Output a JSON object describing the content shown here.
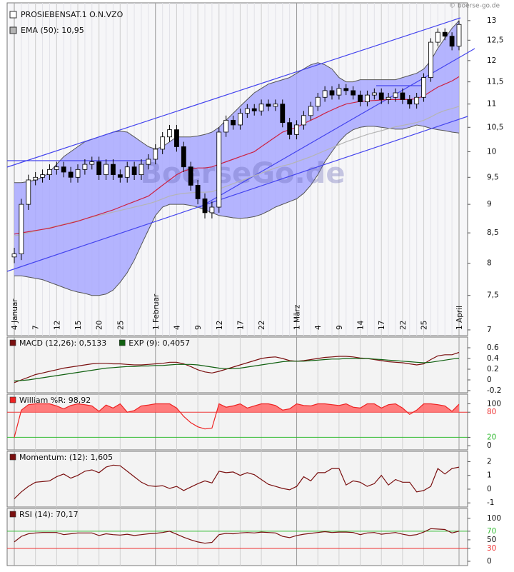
{
  "copyright": "© boerse-go.de",
  "chart_data": [
    {
      "type": "candlestick",
      "log": true,
      "watermark": "BoerseGo.de",
      "ylim": [
        6.92,
        13.47
      ],
      "yticks": [
        13,
        {
          "value": 12.5,
          "label": "12,5"
        },
        12,
        {
          "value": 11.5,
          "label": "11,5"
        },
        11,
        {
          "value": 10.5,
          "label": "10,5"
        },
        10,
        {
          "value": 9.5,
          "label": "9,5"
        },
        9,
        {
          "value": 8.5,
          "label": "8,5"
        },
        8,
        {
          "value": 7.5,
          "label": "7,5"
        },
        7
      ],
      "categories": [
        "4 Januar",
        null,
        null,
        "7",
        null,
        null,
        "12",
        null,
        null,
        "15",
        null,
        null,
        "20",
        null,
        null,
        "25",
        null,
        null,
        null,
        null,
        "1 Februar",
        null,
        null,
        "4",
        null,
        null,
        "9",
        null,
        null,
        "12",
        null,
        null,
        "17",
        null,
        null,
        "22",
        null,
        null,
        null,
        null,
        "1 März",
        null,
        null,
        "4",
        null,
        null,
        "9",
        null,
        null,
        "14",
        null,
        null,
        "17",
        null,
        null,
        "22",
        null,
        null,
        "25",
        null,
        null,
        null,
        null,
        "1 April"
      ],
      "candles": {
        "name": "PROSIEBENSAT.1 O.N.VZO",
        "color_up": "#ffffff",
        "color_down": "#000000",
        "color": "#000000",
        "open": [
          8.1,
          8.15,
          9.0,
          9.45,
          9.5,
          9.55,
          9.65,
          9.7,
          9.6,
          9.5,
          9.65,
          9.75,
          9.8,
          9.55,
          9.75,
          9.55,
          9.5,
          9.7,
          9.55,
          9.75,
          9.85,
          10.05,
          10.3,
          10.45,
          10.1,
          9.7,
          9.35,
          9.1,
          8.85,
          8.95,
          10.4,
          10.65,
          10.55,
          10.8,
          10.9,
          10.85,
          11.0,
          10.95,
          11.0,
          10.6,
          10.35,
          10.55,
          10.75,
          10.95,
          11.15,
          11.3,
          11.2,
          11.35,
          11.3,
          11.2,
          11.05,
          11.2,
          11.25,
          11.1,
          11.15,
          11.25,
          11.1,
          11.0,
          11.15,
          11.6,
          12.45,
          12.7,
          12.6,
          12.35
        ],
        "high": [
          8.25,
          9.1,
          9.55,
          9.6,
          9.65,
          9.75,
          9.8,
          9.8,
          9.7,
          9.75,
          9.85,
          9.9,
          9.9,
          9.85,
          9.85,
          9.65,
          9.8,
          9.8,
          9.85,
          9.95,
          10.15,
          10.4,
          10.55,
          10.55,
          10.2,
          9.8,
          9.45,
          9.2,
          9.05,
          10.5,
          10.75,
          10.75,
          10.9,
          11.0,
          11.0,
          11.1,
          11.1,
          11.1,
          11.1,
          10.7,
          10.65,
          10.85,
          11.05,
          11.25,
          11.4,
          11.4,
          11.45,
          11.45,
          11.4,
          11.3,
          11.3,
          11.35,
          11.35,
          11.25,
          11.35,
          11.35,
          11.2,
          11.25,
          11.7,
          12.55,
          12.8,
          12.8,
          12.7,
          13.0
        ],
        "low": [
          8.0,
          8.05,
          8.9,
          9.35,
          9.4,
          9.45,
          9.55,
          9.5,
          9.4,
          9.4,
          9.55,
          9.65,
          9.45,
          9.45,
          9.45,
          9.4,
          9.4,
          9.45,
          9.45,
          9.65,
          9.75,
          9.95,
          10.2,
          10.0,
          9.6,
          9.25,
          9.0,
          8.75,
          8.75,
          8.85,
          10.3,
          10.45,
          10.45,
          10.7,
          10.75,
          10.75,
          10.85,
          10.85,
          10.5,
          10.25,
          10.25,
          10.45,
          10.65,
          10.85,
          11.05,
          11.1,
          11.1,
          11.2,
          11.1,
          10.95,
          10.95,
          11.1,
          11.0,
          11.0,
          11.05,
          11.0,
          10.9,
          10.9,
          11.05,
          11.5,
          12.35,
          12.5,
          12.25,
          12.25
        ],
        "close": [
          8.15,
          9.0,
          9.45,
          9.5,
          9.55,
          9.65,
          9.7,
          9.6,
          9.5,
          9.65,
          9.75,
          9.8,
          9.55,
          9.75,
          9.55,
          9.5,
          9.7,
          9.55,
          9.75,
          9.85,
          10.05,
          10.3,
          10.45,
          10.1,
          9.7,
          9.35,
          9.1,
          8.85,
          8.95,
          10.4,
          10.65,
          10.55,
          10.8,
          10.9,
          10.85,
          11.0,
          10.95,
          11.0,
          10.6,
          10.35,
          10.55,
          10.75,
          10.95,
          11.15,
          11.3,
          11.2,
          11.35,
          11.3,
          11.2,
          11.05,
          11.2,
          11.25,
          11.1,
          11.15,
          11.25,
          11.1,
          11.0,
          11.15,
          11.6,
          12.45,
          12.7,
          12.6,
          12.35,
          12.9
        ]
      },
      "band": {
        "color": "#555555",
        "fill": "#a8a8ff",
        "upper": [
          9.4,
          9.4,
          9.42,
          9.45,
          9.5,
          9.6,
          9.75,
          9.9,
          10.0,
          10.1,
          10.2,
          10.25,
          10.3,
          10.35,
          10.4,
          10.42,
          10.4,
          10.3,
          10.2,
          10.1,
          10.05,
          10.1,
          10.2,
          10.3,
          10.3,
          10.3,
          10.32,
          10.35,
          10.4,
          10.5,
          10.65,
          10.8,
          10.95,
          11.1,
          11.25,
          11.35,
          11.45,
          11.5,
          11.55,
          11.6,
          11.7,
          11.8,
          11.9,
          11.95,
          11.9,
          11.8,
          11.6,
          11.5,
          11.5,
          11.55,
          11.55,
          11.55,
          11.55,
          11.55,
          11.55,
          11.6,
          11.65,
          11.7,
          11.8,
          12.0,
          12.3,
          12.55,
          12.8,
          13.0
        ],
        "lower": [
          7.8,
          7.8,
          7.78,
          7.76,
          7.74,
          7.7,
          7.66,
          7.62,
          7.58,
          7.55,
          7.53,
          7.5,
          7.5,
          7.52,
          7.58,
          7.7,
          7.85,
          8.05,
          8.3,
          8.55,
          8.8,
          8.95,
          9.0,
          9.0,
          9.0,
          8.98,
          8.95,
          8.9,
          8.85,
          8.8,
          8.78,
          8.76,
          8.75,
          8.76,
          8.78,
          8.82,
          8.88,
          8.95,
          9.0,
          9.05,
          9.1,
          9.2,
          9.35,
          9.55,
          9.8,
          10.0,
          10.2,
          10.35,
          10.45,
          10.5,
          10.52,
          10.52,
          10.5,
          10.48,
          10.46,
          10.46,
          10.5,
          10.55,
          10.52,
          10.48,
          10.45,
          10.43,
          10.4,
          10.38
        ]
      },
      "series": [
        {
          "name": "EMA (50): 10,95",
          "color": "#b4b4b4",
          "values": [
            8.45,
            8.47,
            8.5,
            8.53,
            8.56,
            8.59,
            8.62,
            8.65,
            8.68,
            8.71,
            8.74,
            8.77,
            8.8,
            8.83,
            8.86,
            8.89,
            8.92,
            8.95,
            8.98,
            9.01,
            9.05,
            9.1,
            9.15,
            9.18,
            9.2,
            9.21,
            9.22,
            9.22,
            9.23,
            9.28,
            9.33,
            9.38,
            9.43,
            9.48,
            9.53,
            9.58,
            9.63,
            9.68,
            9.72,
            9.75,
            9.8,
            9.85,
            9.9,
            9.96,
            10.02,
            10.08,
            10.14,
            10.2,
            10.25,
            10.3,
            10.35,
            10.39,
            10.43,
            10.47,
            10.51,
            10.54,
            10.57,
            10.6,
            10.65,
            10.72,
            10.8,
            10.86,
            10.9,
            10.95
          ]
        },
        {
          "color": "#cc2244",
          "values": [
            8.48,
            8.5,
            8.52,
            8.54,
            8.56,
            8.58,
            8.61,
            8.64,
            8.67,
            8.7,
            8.74,
            8.78,
            8.82,
            8.86,
            8.9,
            8.95,
            9.0,
            9.05,
            9.1,
            9.15,
            9.25,
            9.35,
            9.45,
            9.55,
            9.62,
            9.66,
            9.68,
            9.68,
            9.7,
            9.75,
            9.8,
            9.85,
            9.9,
            9.95,
            10.0,
            10.1,
            10.2,
            10.3,
            10.4,
            10.45,
            10.5,
            10.58,
            10.65,
            10.72,
            10.8,
            10.87,
            10.94,
            11.0,
            11.03,
            11.06,
            11.07,
            11.08,
            11.09,
            11.1,
            11.1,
            11.1,
            11.1,
            11.12,
            11.18,
            11.28,
            11.38,
            11.45,
            11.52,
            11.62
          ]
        }
      ]
    },
    {
      "type": "line",
      "ylim": [
        -0.24,
        0.8
      ],
      "yticks": [
        0.6,
        0.4,
        0.2,
        0,
        -0.2
      ],
      "series": [
        {
          "name": "MACD (12,26): 0,5133",
          "color": "#7a1010",
          "values": [
            -0.05,
            0.0,
            0.05,
            0.1,
            0.13,
            0.16,
            0.19,
            0.22,
            0.24,
            0.26,
            0.28,
            0.3,
            0.31,
            0.31,
            0.3,
            0.3,
            0.29,
            0.28,
            0.28,
            0.29,
            0.3,
            0.31,
            0.33,
            0.33,
            0.3,
            0.25,
            0.19,
            0.15,
            0.13,
            0.16,
            0.2,
            0.24,
            0.28,
            0.32,
            0.36,
            0.4,
            0.42,
            0.43,
            0.4,
            0.36,
            0.35,
            0.36,
            0.38,
            0.4,
            0.42,
            0.43,
            0.44,
            0.44,
            0.43,
            0.41,
            0.4,
            0.38,
            0.36,
            0.34,
            0.33,
            0.32,
            0.3,
            0.28,
            0.3,
            0.38,
            0.45,
            0.47,
            0.47,
            0.5133
          ]
        },
        {
          "name": "EXP (9): 0,4057",
          "color": "#106010",
          "values": [
            -0.02,
            -0.01,
            0.0,
            0.02,
            0.04,
            0.06,
            0.08,
            0.1,
            0.12,
            0.14,
            0.16,
            0.18,
            0.2,
            0.22,
            0.23,
            0.24,
            0.25,
            0.25,
            0.26,
            0.26,
            0.27,
            0.27,
            0.28,
            0.29,
            0.29,
            0.29,
            0.28,
            0.26,
            0.24,
            0.22,
            0.21,
            0.21,
            0.22,
            0.24,
            0.26,
            0.28,
            0.3,
            0.32,
            0.34,
            0.35,
            0.35,
            0.35,
            0.36,
            0.37,
            0.38,
            0.39,
            0.39,
            0.4,
            0.4,
            0.4,
            0.4,
            0.39,
            0.38,
            0.37,
            0.36,
            0.35,
            0.34,
            0.33,
            0.32,
            0.33,
            0.35,
            0.37,
            0.39,
            0.4057
          ]
        }
      ]
    },
    {
      "type": "line",
      "ylim": [
        -10,
        123
      ],
      "yticks": [
        100,
        80,
        20,
        0
      ],
      "hlines": [
        {
          "value": 80,
          "color": "#ee3333"
        },
        {
          "value": 20,
          "color": "#33bb33"
        }
      ],
      "series": [
        {
          "name": "William %R: 98,92",
          "color": "#ee2222",
          "fill": "#ff6666",
          "values": [
            20,
            85,
            98,
            100,
            100,
            100,
            95,
            88,
            96,
            100,
            98,
            95,
            82,
            97,
            90,
            100,
            80,
            84,
            95,
            97,
            100,
            100,
            100,
            90,
            70,
            55,
            45,
            40,
            42,
            100,
            92,
            95,
            100,
            90,
            95,
            100,
            100,
            96,
            85,
            88,
            100,
            96,
            95,
            100,
            100,
            98,
            96,
            100,
            92,
            90,
            100,
            100,
            90,
            98,
            100,
            90,
            75,
            85,
            100,
            100,
            98,
            95,
            82,
            98.92
          ]
        }
      ]
    },
    {
      "type": "line",
      "ylim": [
        -1.3,
        2.75
      ],
      "yticks": [
        2,
        1,
        0,
        -1
      ],
      "series": [
        {
          "name": "Momentum: (12): 1,605",
          "color": "#7a1010",
          "values": [
            -0.7,
            -0.2,
            0.2,
            0.5,
            0.55,
            0.6,
            0.9,
            1.1,
            0.8,
            1.0,
            1.3,
            1.4,
            1.2,
            1.6,
            1.75,
            1.7,
            1.3,
            0.9,
            0.5,
            0.25,
            0.2,
            0.25,
            0.05,
            0.2,
            -0.1,
            0.15,
            0.4,
            0.6,
            0.45,
            1.3,
            1.2,
            1.25,
            1.0,
            1.2,
            1.05,
            0.7,
            0.35,
            0.2,
            0.05,
            -0.05,
            0.2,
            0.9,
            0.6,
            1.2,
            1.2,
            1.5,
            1.5,
            0.3,
            0.6,
            0.5,
            0.2,
            0.4,
            1.0,
            0.3,
            0.7,
            0.5,
            0.5,
            -0.2,
            -0.1,
            0.2,
            1.5,
            1.1,
            1.5,
            1.605
          ]
        }
      ]
    },
    {
      "type": "line",
      "ylim": [
        -10,
        123
      ],
      "yticks": [
        100,
        70,
        50,
        30,
        0
      ],
      "hlines": [
        {
          "value": 70,
          "color": "#33bb33"
        },
        {
          "value": 30,
          "color": "#ee3333"
        }
      ],
      "series": [
        {
          "name": "RSI (14): 70,17",
          "color": "#7a1010",
          "values": [
            45,
            58,
            64,
            66,
            67,
            67,
            67,
            62,
            64,
            66,
            66,
            66,
            60,
            64,
            62,
            61,
            63,
            60,
            62,
            64,
            65,
            67,
            70,
            63,
            56,
            50,
            45,
            42,
            44,
            62,
            65,
            64,
            66,
            67,
            66,
            68,
            67,
            66,
            58,
            55,
            60,
            63,
            65,
            67,
            69,
            67,
            68,
            68,
            67,
            62,
            66,
            67,
            63,
            65,
            67,
            63,
            60,
            62,
            68,
            76,
            75,
            74,
            66,
            70.17
          ]
        }
      ]
    }
  ]
}
